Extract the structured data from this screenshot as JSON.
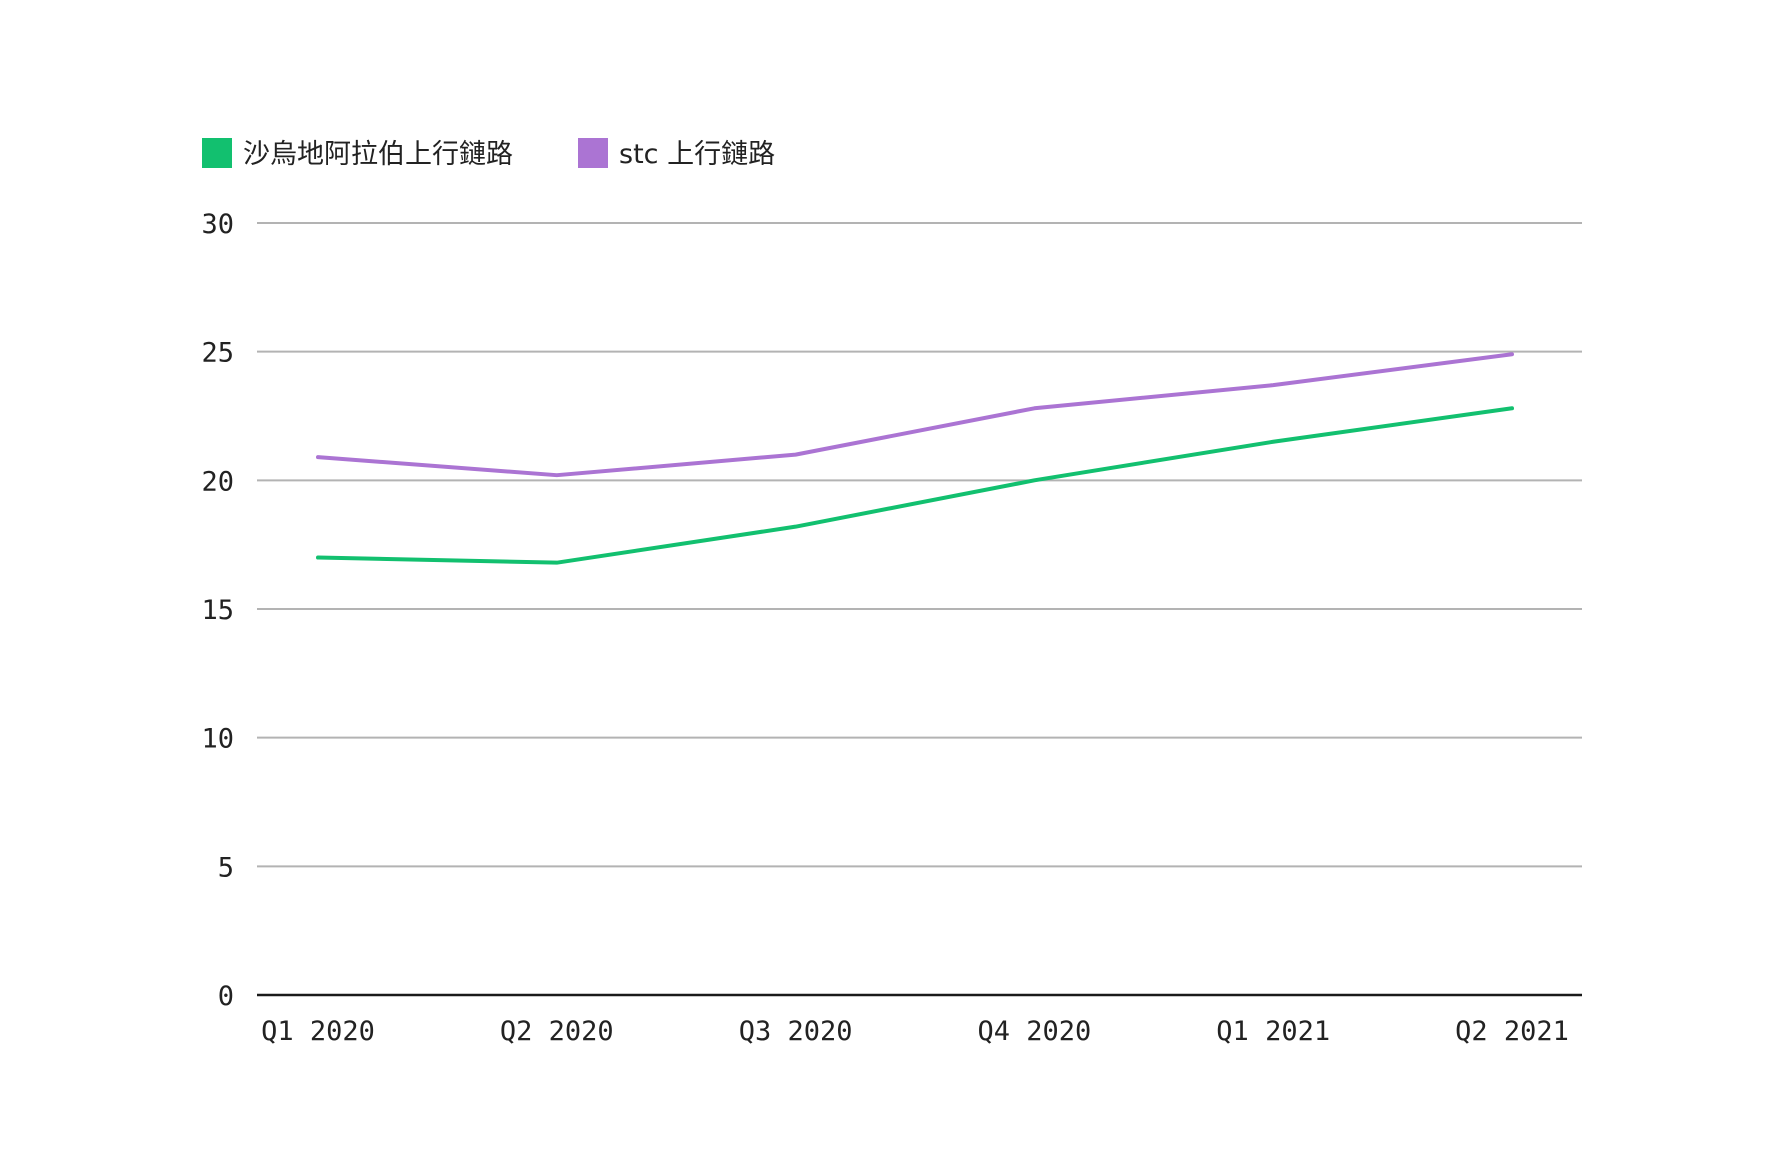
{
  "chart_data": {
    "type": "line",
    "title": "",
    "xlabel": "",
    "ylabel": "",
    "categories": [
      "Q1 2020",
      "Q2 2020",
      "Q3 2020",
      "Q4 2020",
      "Q1 2021",
      "Q2 2021"
    ],
    "series": [
      {
        "name": "沙烏地阿拉伯上行鏈路",
        "color": "#12c06f",
        "values": [
          17.0,
          16.8,
          18.2,
          20.0,
          21.5,
          22.8
        ]
      },
      {
        "name": "stc 上行鏈路",
        "color": "#ab74d3",
        "values": [
          20.9,
          20.2,
          21.0,
          22.8,
          23.7,
          24.9
        ]
      }
    ],
    "ylim": [
      0,
      30
    ],
    "yticks": [
      0,
      5,
      10,
      15,
      20,
      25,
      30
    ],
    "grid": true,
    "legend_position": "top-left"
  }
}
